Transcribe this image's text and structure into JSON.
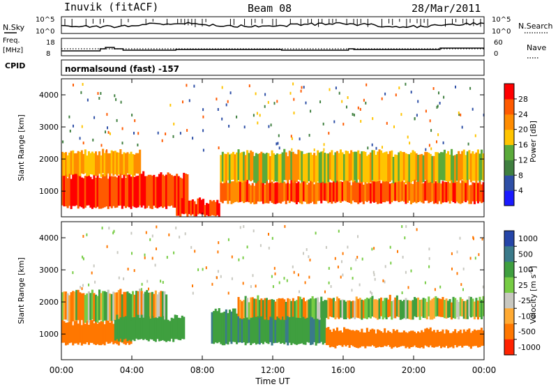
{
  "header": {
    "station": "Inuvik (fitACF)",
    "beam": "Beam 08",
    "date": "28/Mar/2011"
  },
  "top_panels": {
    "nsky_label": "N.Sky",
    "nsearch_label": "N.Search",
    "nsky_ticks": [
      "10^5",
      "10^0"
    ],
    "nsearch_ticks": [
      "10^5",
      "10^0"
    ],
    "freq_label_1": "Freq.",
    "freq_label_2": "[MHz]",
    "freq_ticks": [
      "18",
      "8"
    ],
    "nave_label": "Nave",
    "nave_ticks": [
      "60",
      "0"
    ],
    "cpid_label": "CPID",
    "cpid_value": "normalsound (fast) -157"
  },
  "colors": {
    "power_scale": [
      "#1a1aff",
      "#2e4fa6",
      "#3f7f3f",
      "#5aaa3a",
      "#ffc400",
      "#ff8c00",
      "#ff5a00",
      "#ff0000"
    ],
    "velocity_scale": [
      "#2545a8",
      "#3a7a8a",
      "#3f9f3f",
      "#77cc44",
      "#c8c8c0",
      "#ffaa33",
      "#ff7700",
      "#ff2200"
    ]
  },
  "chart_data": [
    {
      "type": "heatmap",
      "title": "",
      "xlabel": "",
      "ylabel": "Slant Range [km]",
      "x_ticks": [
        "00:00",
        "04:00",
        "08:00",
        "12:00",
        "16:00",
        "20:00",
        "00:00"
      ],
      "y_ticks": [
        "1000",
        "2000",
        "3000",
        "4000"
      ],
      "ylim": [
        200,
        4500
      ],
      "colorbar_label": "Power [dB]",
      "colorbar_ticks": [
        "4",
        "8",
        "12",
        "16",
        "20",
        "24",
        "28"
      ],
      "bands": [
        {
          "t_start_h": 0.0,
          "t_end_h": 7.2,
          "range_low_km": 500,
          "range_high_km": 1500,
          "level_db": 28
        },
        {
          "t_start_h": 0.0,
          "t_end_h": 4.5,
          "range_low_km": 1500,
          "range_high_km": 2200,
          "level_db": 20
        },
        {
          "t_start_h": 6.5,
          "t_end_h": 9.0,
          "range_low_km": 250,
          "range_high_km": 700,
          "level_db": 28
        },
        {
          "t_start_h": 9.0,
          "t_end_h": 24.0,
          "range_low_km": 650,
          "range_high_km": 1300,
          "level_db": 26
        },
        {
          "t_start_h": 9.0,
          "t_end_h": 24.0,
          "range_low_km": 1300,
          "range_high_km": 2200,
          "level_db": 18
        }
      ]
    },
    {
      "type": "heatmap",
      "title": "",
      "xlabel": "Time UT",
      "ylabel": "Slant Range [km]",
      "x_ticks": [
        "00:00",
        "04:00",
        "08:00",
        "12:00",
        "16:00",
        "20:00",
        "00:00"
      ],
      "y_ticks": [
        "1000",
        "2000",
        "3000",
        "4000"
      ],
      "ylim": [
        200,
        4500
      ],
      "colorbar_label": "Velocity [m s^-1]",
      "colorbar_ticks": [
        "1000",
        "500",
        "100",
        "25",
        "-25",
        "-100",
        "-500",
        "-1000"
      ],
      "bands": [
        {
          "t_start_h": 0.0,
          "t_end_h": 4.0,
          "range_low_km": 700,
          "range_high_km": 1400,
          "velocity_ms": -300
        },
        {
          "t_start_h": 0.0,
          "t_end_h": 6.0,
          "range_low_km": 1400,
          "range_high_km": 2300,
          "velocity_ms": 0
        },
        {
          "t_start_h": 3.0,
          "t_end_h": 7.0,
          "range_low_km": 800,
          "range_high_km": 1500,
          "velocity_ms": 300
        },
        {
          "t_start_h": 8.5,
          "t_end_h": 15.0,
          "range_low_km": 700,
          "range_high_km": 1700,
          "velocity_ms": 400
        },
        {
          "t_start_h": 15.0,
          "t_end_h": 24.0,
          "range_low_km": 600,
          "range_high_km": 1100,
          "velocity_ms": -300
        },
        {
          "t_start_h": 10.0,
          "t_end_h": 24.0,
          "range_low_km": 1500,
          "range_high_km": 2100,
          "velocity_ms": 0
        }
      ]
    }
  ]
}
